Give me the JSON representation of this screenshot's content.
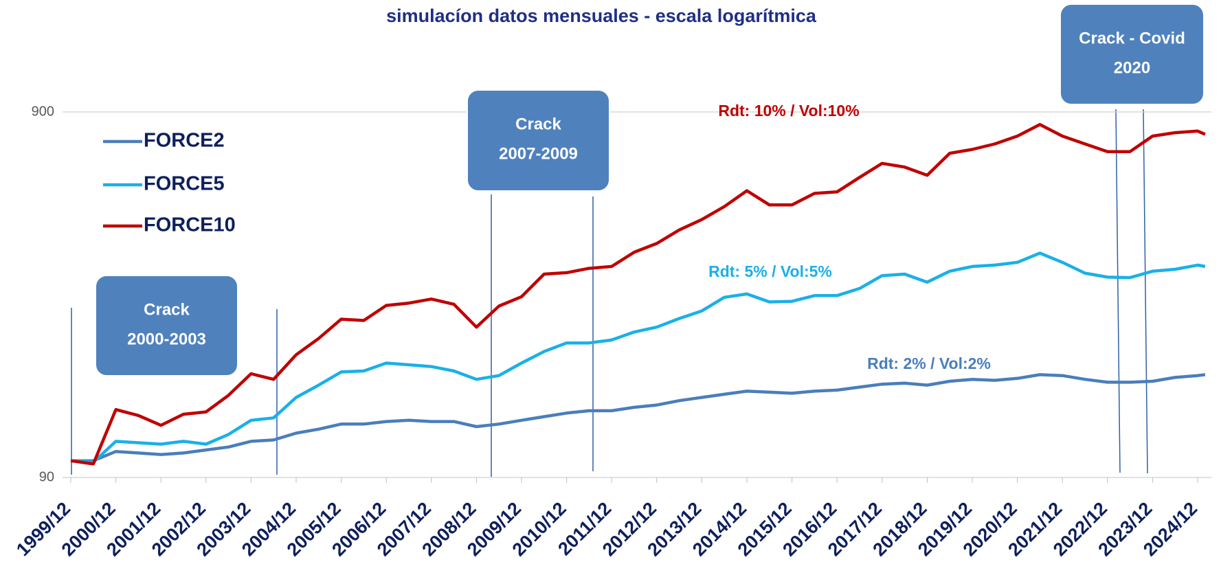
{
  "chart_data": {
    "type": "line",
    "title": "simulacíon datos mensuales - escala logarítmica",
    "ylog": true,
    "ylim": [
      90,
      900
    ],
    "yticks": [
      90,
      900
    ],
    "grid": true,
    "legend": "top-left",
    "xticks": [
      "1999/12",
      "2000/12",
      "2001/12",
      "2002/12",
      "2003/12",
      "2004/12",
      "2005/12",
      "2006/12",
      "2007/12",
      "2008/12",
      "2009/12",
      "2010/12",
      "2011/12",
      "2012/12",
      "2013/12",
      "2014/12",
      "2015/12",
      "2016/12",
      "2017/12",
      "2018/12",
      "2019/12",
      "2020/12",
      "2021/12",
      "2022/12",
      "2023/12",
      "2024/12"
    ],
    "x": [
      "1999/12",
      "2000/06",
      "2000/12",
      "2001/06",
      "2001/12",
      "2002/06",
      "2002/12",
      "2003/06",
      "2003/12",
      "2004/06",
      "2004/12",
      "2005/06",
      "2005/12",
      "2006/06",
      "2006/12",
      "2007/06",
      "2007/12",
      "2008/06",
      "2008/12",
      "2009/06",
      "2009/12",
      "2010/06",
      "2010/12",
      "2011/06",
      "2011/12",
      "2012/06",
      "2012/12",
      "2013/06",
      "2013/12",
      "2014/06",
      "2014/12",
      "2015/06",
      "2015/12",
      "2016/06",
      "2016/12",
      "2017/06",
      "2017/12",
      "2018/06",
      "2018/12",
      "2019/06",
      "2019/12",
      "2020/06",
      "2020/12",
      "2021/06",
      "2021/12",
      "2022/06",
      "2022/12",
      "2023/06",
      "2023/12",
      "2024/06",
      "2024/12",
      "2025/02"
    ],
    "series": [
      {
        "name": "FORCE2",
        "color": "#4a7ebb",
        "values": [
          100,
          100,
          106,
          105,
          104,
          105,
          107,
          109,
          113,
          114,
          119,
          122,
          126,
          126,
          128,
          129,
          128,
          128,
          124,
          126,
          129,
          132,
          135,
          137,
          137,
          140,
          142,
          146,
          149,
          152,
          155,
          154,
          153,
          155,
          156,
          159,
          162,
          163,
          161,
          165,
          167,
          166,
          168,
          172,
          171,
          167,
          164,
          164,
          165,
          169,
          171,
          172
        ]
      },
      {
        "name": "FORCE5",
        "color": "#1ab0e8",
        "values": [
          100,
          99,
          113,
          112,
          111,
          113,
          111,
          118,
          129,
          131,
          149,
          161,
          175,
          176,
          185,
          183,
          181,
          176,
          167,
          171,
          185,
          199,
          210,
          210,
          214,
          225,
          232,
          245,
          257,
          280,
          286,
          272,
          273,
          283,
          283,
          296,
          321,
          324,
          308,
          330,
          340,
          343,
          349,
          370,
          349,
          326,
          318,
          317,
          330,
          334,
          343,
          340
        ]
      },
      {
        "name": "FORCE10",
        "color": "#c00000",
        "values": [
          100,
          98,
          138,
          133,
          125,
          134,
          136,
          151,
          173,
          167,
          195,
          216,
          244,
          242,
          266,
          270,
          277,
          268,
          232,
          265,
          281,
          324,
          327,
          336,
          340,
          372,
          393,
          428,
          457,
          496,
          548,
          501,
          501,
          539,
          544,
          596,
          651,
          636,
          604,
          694,
          711,
          736,
          773,
          832,
          773,
          736,
          701,
          701,
          773,
          790,
          798,
          782
        ]
      }
    ],
    "annotations": [
      {
        "text": [
          "Crack",
          "2000-2003"
        ]
      },
      {
        "text": [
          "Crack",
          "2007-2009"
        ]
      },
      {
        "text": [
          "Crack - Covid",
          "2020"
        ]
      },
      {
        "text": "Rdt: 10% / Vol:10%",
        "color": "#c00000"
      },
      {
        "text": "Rdt: 5% / Vol:5%",
        "color": "#1ab0e8"
      },
      {
        "text": "Rdt: 2% / Vol:2%",
        "color": "#4a7ebb"
      }
    ]
  }
}
